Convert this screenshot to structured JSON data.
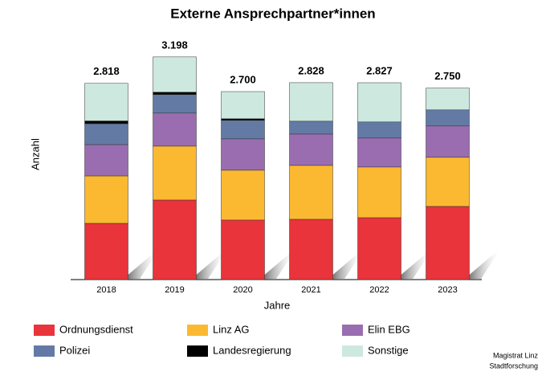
{
  "chart_data": {
    "type": "stacked_bar",
    "title": "Externe Ansprechpartner*innen",
    "x_label": "Jahre",
    "y_label": "Anzahl",
    "categories": [
      "2018",
      "2019",
      "2020",
      "2021",
      "2022",
      "2023"
    ],
    "series": [
      {
        "name": "Ordnungsdienst",
        "color": "#e8343a",
        "values": [
          808,
          1143,
          855,
          866,
          889,
          1051
        ]
      },
      {
        "name": "Linz AG",
        "color": "#fbb931",
        "values": [
          681,
          774,
          716,
          774,
          728,
          705
        ]
      },
      {
        "name": "Elin EBG",
        "color": "#9a6db0",
        "values": [
          450,
          474,
          450,
          450,
          416,
          450
        ]
      },
      {
        "name": "Polizei",
        "color": "#637aa5",
        "values": [
          300,
          266,
          266,
          185,
          231,
          231
        ]
      },
      {
        "name": "Landesregierung",
        "color": "#000000",
        "values": [
          40,
          35,
          23,
          0,
          0,
          0
        ]
      },
      {
        "name": "Sonstige",
        "color": "#cde8df",
        "values": [
          539,
          506,
          390,
          553,
          563,
          313
        ]
      }
    ],
    "totals": {
      "values": [
        2818,
        3198,
        2700,
        2828,
        2827,
        2750
      ],
      "value_labels": [
        "2.818",
        "3.198",
        "2.700",
        "2.828",
        "2.827",
        "2.750"
      ]
    },
    "ylim": [
      0,
      3600
    ],
    "source": [
      "Magistrat Linz",
      "Stadtforschung"
    ]
  }
}
